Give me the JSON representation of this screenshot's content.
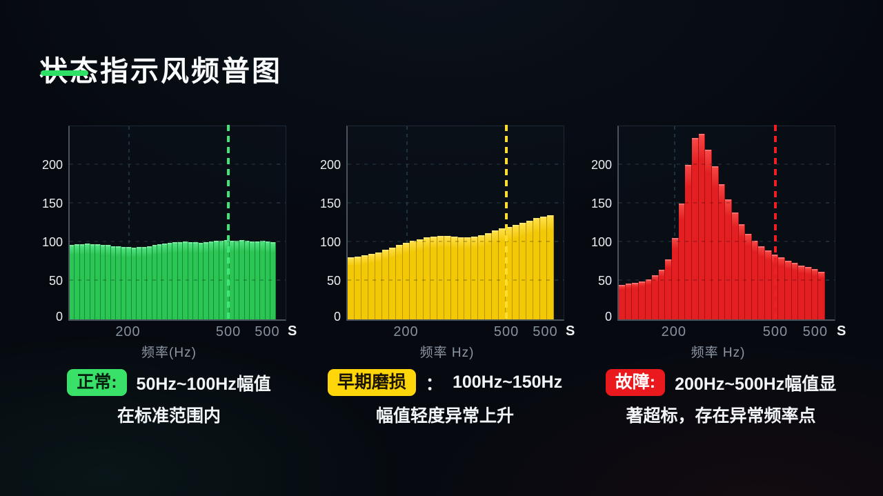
{
  "slide": {
    "title": "状态指示风频普图",
    "underline_color": "#2fe066"
  },
  "chart_data": [
    {
      "type": "bar",
      "state": "normal",
      "xlabel": "频率(Hz)",
      "ylabel": "",
      "ylim": [
        0,
        250
      ],
      "y_ticks": [
        0,
        50,
        100,
        150,
        200
      ],
      "x_ticks": [
        "200",
        "500",
        "500"
      ],
      "x_tick_pos_pct": [
        27,
        73.5,
        91.5
      ],
      "x_unit": "S",
      "ref_vline_pos_pct": 27,
      "accent_vline_pos_pct": 73.5,
      "grid": true,
      "colors": {
        "bar": "#2bc553",
        "bar_divider": "#158a3a",
        "bar_top": "#55e586",
        "accent": "#3fe57a"
      },
      "values": [
        96,
        97,
        97,
        98,
        97,
        97,
        96,
        96,
        95,
        95,
        94,
        94,
        93,
        94,
        94,
        95,
        96,
        97,
        98,
        99,
        100,
        100,
        101,
        100,
        100,
        99,
        100,
        101,
        102,
        102,
        103,
        102,
        102,
        103,
        102,
        101,
        101,
        102,
        101,
        100
      ]
    },
    {
      "type": "bar",
      "state": "early-wear",
      "xlabel": "频率 Hz)",
      "ylabel": "",
      "ylim": [
        0,
        250
      ],
      "y_ticks": [
        0,
        50,
        100,
        150,
        200
      ],
      "x_ticks": [
        "200",
        "500",
        "500"
      ],
      "x_tick_pos_pct": [
        27,
        73.5,
        91.5
      ],
      "x_unit": "S",
      "ref_vline_pos_pct": 27,
      "accent_vline_pos_pct": 73.5,
      "grid": true,
      "colors": {
        "bar": "#f3c906",
        "bar_divider": "#b89300",
        "bar_top": "#ffe14e",
        "accent": "#ffdd2e"
      },
      "values": [
        80,
        81,
        83,
        85,
        87,
        90,
        93,
        96,
        99,
        102,
        104,
        106,
        107,
        108,
        108,
        107,
        106,
        106,
        107,
        109,
        112,
        115,
        118,
        120,
        122,
        125,
        128,
        131,
        133,
        135
      ]
    },
    {
      "type": "bar",
      "state": "fault",
      "xlabel": "频率 Hz)",
      "ylabel": "",
      "ylim": [
        0,
        250
      ],
      "y_ticks": [
        0,
        50,
        100,
        150,
        200
      ],
      "x_ticks": [
        "200",
        "500",
        "500"
      ],
      "x_tick_pos_pct": [
        25.5,
        72.5,
        91
      ],
      "x_unit": "S",
      "ref_vline_pos_pct": 25.5,
      "accent_vline_pos_pct": 72.5,
      "grid": true,
      "colors": {
        "bar": "#e41f21",
        "bar_divider": "#a81214",
        "bar_top": "#f64a48",
        "accent": "#ee2026"
      },
      "values": [
        45,
        46,
        47,
        49,
        52,
        57,
        64,
        78,
        105,
        150,
        200,
        235,
        240,
        220,
        198,
        175,
        155,
        138,
        123,
        111,
        102,
        95,
        89,
        84,
        80,
        76,
        73,
        70,
        68,
        65,
        62
      ]
    }
  ],
  "captions": [
    {
      "badge": "正常:",
      "badge_bg": "#3ae169",
      "badge_fg": "#05200e",
      "separator": "",
      "line1": "50Hz~100Hz幅值",
      "line2": "在标准范围内"
    },
    {
      "badge": "早期磨损",
      "badge_bg": "#ffd60a",
      "badge_fg": "#1a1400",
      "separator": "：",
      "line1": "100Hz~150Hz",
      "line2": "幅值轻度异常上升"
    },
    {
      "badge": "故障:",
      "badge_bg": "#e9191d",
      "badge_fg": "#ffffff",
      "separator": "",
      "line1": "200Hz~500Hz幅值显",
      "line2": "著超标，存在异常频率点"
    }
  ]
}
